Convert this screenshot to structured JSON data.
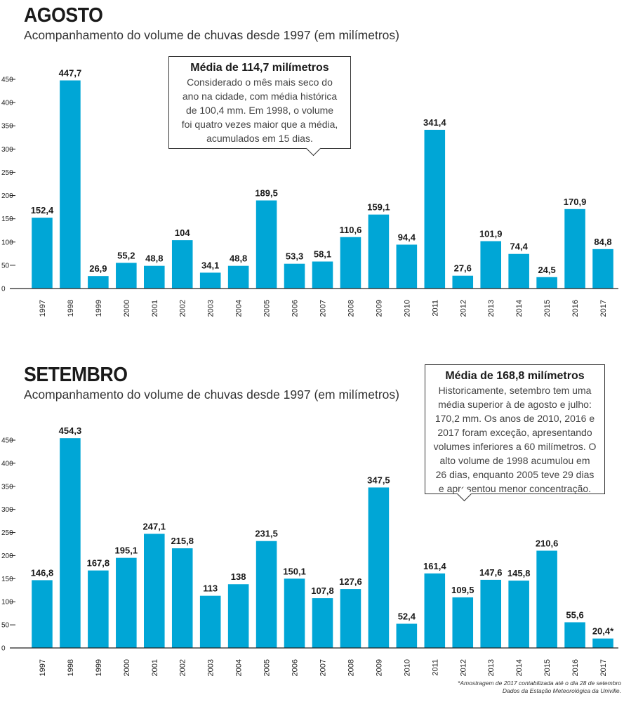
{
  "chart_data": [
    {
      "type": "bar",
      "title": "AGOSTO",
      "subtitle": "Acompanhamento do volume de chuvas desde 1997 (em milímetros)",
      "categories": [
        "1997",
        "1998",
        "1999",
        "2000",
        "2001",
        "2002",
        "2003",
        "2004",
        "2005",
        "2006",
        "2007",
        "2008",
        "2009",
        "2010",
        "2011",
        "2012",
        "2013",
        "2014",
        "2015",
        "2016",
        "2017"
      ],
      "values": [
        152.4,
        447.7,
        26.9,
        55.2,
        48.8,
        104,
        34.1,
        48.8,
        189.5,
        53.3,
        58.1,
        110.6,
        159.1,
        94.4,
        341.4,
        27.6,
        101.9,
        74.4,
        24.5,
        170.9,
        84.8
      ],
      "value_labels": [
        "152,4",
        "447,7",
        "26,9",
        "55,2",
        "48,8",
        "104",
        "34,1",
        "48,8",
        "189,5",
        "53,3",
        "58,1",
        "110,6",
        "159,1",
        "94,4",
        "341,4",
        "27,6",
        "101,9",
        "74,4",
        "24,5",
        "170,9",
        "84,8"
      ],
      "ylim": [
        0,
        450
      ],
      "yticks": [
        0,
        50,
        100,
        150,
        200,
        250,
        300,
        350,
        400,
        450
      ],
      "bar_color": "#00a6d6",
      "grid": false,
      "annotation": {
        "heading": "Média de 114,7 milímetros",
        "lines": [
          "Considerado o mês mais seco do",
          "ano na cidade, com média histórica",
          "de 100,4 mm. Em 1998, o volume",
          "foi quatro vezes maior que a média,",
          "acumulados em 15 dias."
        ]
      }
    },
    {
      "type": "bar",
      "title": "SETEMBRO",
      "subtitle": "Acompanhamento do volume de chuvas desde 1997 (em milímetros)",
      "categories": [
        "1997",
        "1998",
        "1999",
        "2000",
        "2001",
        "2002",
        "2003",
        "2004",
        "2005",
        "2006",
        "2007",
        "2008",
        "2009",
        "2010",
        "2011",
        "2012",
        "2013",
        "2014",
        "2015",
        "2016",
        "2017"
      ],
      "values": [
        146.8,
        454.3,
        167.8,
        195.1,
        247.1,
        215.8,
        113,
        138,
        231.5,
        150.1,
        107.8,
        127.6,
        347.5,
        52.4,
        161.4,
        109.5,
        147.6,
        145.8,
        210.6,
        55.6,
        20.4
      ],
      "value_labels": [
        "146,8",
        "454,3",
        "167,8",
        "195,1",
        "247,1",
        "215,8",
        "113",
        "138",
        "231,5",
        "150,1",
        "107,8",
        "127,6",
        "347,5",
        "52,4",
        "161,4",
        "109,5",
        "147,6",
        "145,8",
        "210,6",
        "55,6",
        "20,4*"
      ],
      "ylim": [
        0,
        450
      ],
      "yticks": [
        0,
        50,
        100,
        150,
        200,
        250,
        300,
        350,
        400,
        450
      ],
      "bar_color": "#00a6d6",
      "grid": false,
      "annotation": {
        "heading": "Média de 168,8 milímetros",
        "lines": [
          "Historicamente, setembro tem uma",
          "média superior à de agosto e julho:",
          "170,2 mm. Os anos de 2010, 2016 e",
          "2017 foram exceção, apresentando",
          "volumes inferiores a 60 milímetros. O",
          "alto volume de 1998 acumulou em",
          "26 dias, enquanto 2005 teve 29 dias",
          "e apresentou menor concentração."
        ]
      }
    }
  ],
  "footnote": {
    "line1": "*Amostragem de 2017 contabilizada até o dia 28 de setembro",
    "line2": "Dados da Estação Meteorológica da Univille."
  }
}
